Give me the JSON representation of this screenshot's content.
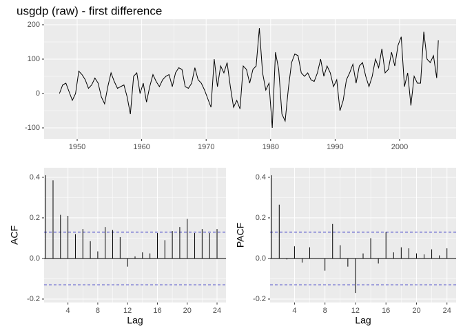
{
  "chart_data": [
    {
      "type": "line",
      "title": "usgdp (raw) - first difference",
      "color": "#000000",
      "grid": true,
      "x": [
        1947.25,
        1947.75,
        1948.25,
        1948.75,
        1949.25,
        1949.75,
        1950.25,
        1950.75,
        1951.25,
        1951.75,
        1952.25,
        1952.75,
        1953.25,
        1953.75,
        1954.25,
        1954.75,
        1955.25,
        1955.75,
        1956.25,
        1956.75,
        1957.25,
        1957.75,
        1958.25,
        1958.75,
        1959.25,
        1959.75,
        1960.25,
        1960.75,
        1961.25,
        1961.75,
        1962.25,
        1962.75,
        1963.25,
        1963.75,
        1964.25,
        1964.75,
        1965.25,
        1965.75,
        1966.25,
        1966.75,
        1967.25,
        1967.75,
        1968.25,
        1968.75,
        1969.25,
        1969.75,
        1970.25,
        1970.75,
        1971.25,
        1971.75,
        1972.25,
        1972.75,
        1973.25,
        1973.75,
        1974.25,
        1974.75,
        1975.25,
        1975.75,
        1976.25,
        1976.75,
        1977.25,
        1977.75,
        1978.25,
        1978.75,
        1979.25,
        1979.75,
        1980.25,
        1980.75,
        1981.25,
        1981.75,
        1982.25,
        1982.75,
        1983.25,
        1983.75,
        1984.25,
        1984.75,
        1985.25,
        1985.75,
        1986.25,
        1986.75,
        1987.25,
        1987.75,
        1988.25,
        1988.75,
        1989.25,
        1989.75,
        1990.25,
        1990.75,
        1991.25,
        1991.75,
        1992.25,
        1992.75,
        1993.25,
        1993.75,
        1994.25,
        1994.75,
        1995.25,
        1995.75,
        1996.25,
        1996.75,
        1997.25,
        1997.75,
        1998.25,
        1998.75,
        1999.25,
        1999.75,
        2000.25,
        2000.75,
        2001.25,
        2001.75,
        2002.25,
        2002.75,
        2003.25,
        2003.75,
        2004.25,
        2004.75,
        2005.25,
        2005.75,
        2006.0
      ],
      "values": [
        0,
        25,
        30,
        5,
        -20,
        0,
        65,
        55,
        40,
        15,
        25,
        45,
        30,
        -10,
        -30,
        20,
        60,
        35,
        15,
        20,
        25,
        -10,
        -60,
        50,
        60,
        0,
        30,
        -25,
        20,
        55,
        35,
        20,
        40,
        50,
        55,
        20,
        60,
        75,
        70,
        20,
        15,
        30,
        75,
        40,
        30,
        10,
        -15,
        -40,
        100,
        20,
        80,
        60,
        90,
        20,
        -40,
        -20,
        -45,
        80,
        70,
        30,
        70,
        80,
        190,
        60,
        10,
        30,
        -100,
        120,
        70,
        -60,
        -80,
        15,
        90,
        115,
        110,
        60,
        50,
        60,
        40,
        35,
        60,
        100,
        50,
        80,
        60,
        20,
        40,
        -50,
        -20,
        40,
        60,
        85,
        30,
        80,
        90,
        50,
        20,
        50,
        100,
        75,
        130,
        60,
        70,
        120,
        80,
        140,
        165,
        20,
        60,
        -35,
        50,
        30,
        30,
        180,
        100,
        90,
        110,
        45,
        155
      ],
      "xlim": [
        1944.87,
        2008.76
      ],
      "xticks": [
        1950,
        1960,
        1970,
        1980,
        1990,
        2000
      ],
      "ylim": [
        -132,
        216
      ],
      "yticks": [
        -100,
        0,
        100,
        200
      ]
    },
    {
      "type": "acf",
      "ylabel": "ACF",
      "xlabel": "Lag",
      "color": "#000000",
      "grid": true,
      "ci_color": "#1f1fbf",
      "x": [
        1,
        2,
        3,
        4,
        5,
        6,
        7,
        8,
        9,
        10,
        11,
        12,
        13,
        14,
        15,
        16,
        17,
        18,
        19,
        20,
        21,
        22,
        23,
        24
      ],
      "values": [
        0.41,
        0.385,
        0.215,
        0.21,
        0.12,
        0.145,
        0.085,
        0.035,
        0.155,
        0.14,
        0.105,
        -0.04,
        0.01,
        0.03,
        0.025,
        0.125,
        0.09,
        0.135,
        0.155,
        0.195,
        0.125,
        0.145,
        0.125,
        0.145
      ],
      "ci": [
        0.13,
        -0.13
      ],
      "xlim": [
        0.8,
        25.2
      ],
      "xticks": [
        4,
        8,
        12,
        16,
        20,
        24
      ],
      "ylim": [
        -0.217,
        0.447
      ],
      "yticks": [
        -0.2,
        {
          "value": 0,
          "label": "0.0"
        },
        0.2,
        0.4
      ]
    },
    {
      "type": "acf",
      "ylabel": "PACF",
      "xlabel": "Lag",
      "color": "#000000",
      "grid": true,
      "ci_color": "#1f1fbf",
      "x": [
        1,
        2,
        3,
        4,
        5,
        6,
        7,
        8,
        9,
        10,
        11,
        12,
        13,
        14,
        15,
        16,
        17,
        18,
        19,
        20,
        21,
        22,
        23,
        24
      ],
      "values": [
        0.41,
        0.265,
        -0.005,
        0.06,
        -0.02,
        0.055,
        0.0,
        -0.06,
        0.17,
        0.065,
        -0.04,
        -0.17,
        0.025,
        0.1,
        -0.025,
        0.13,
        0.03,
        0.055,
        0.05,
        0.025,
        0.02,
        0.045,
        0.015,
        0.05
      ],
      "ci": [
        0.13,
        -0.13
      ],
      "xlim": [
        0.8,
        25.2
      ],
      "xticks": [
        4,
        8,
        12,
        16,
        20,
        24
      ],
      "ylim": [
        -0.217,
        0.447
      ],
      "yticks": [
        -0.2,
        {
          "value": 0,
          "label": "0.0"
        },
        0.2,
        0.4
      ]
    }
  ]
}
